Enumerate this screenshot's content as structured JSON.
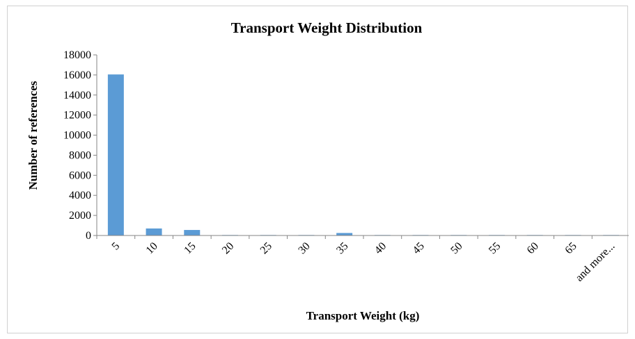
{
  "chart_data": {
    "type": "bar",
    "title": "Transport Weight Distribution",
    "xlabel": "Transport  Weight (kg)",
    "ylabel": "Number of references",
    "categories": [
      "5",
      "10",
      "15",
      "20",
      "25",
      "30",
      "35",
      "40",
      "45",
      "50",
      "55",
      "60",
      "65",
      "and more..."
    ],
    "values": [
      16050,
      700,
      550,
      50,
      50,
      50,
      250,
      50,
      50,
      50,
      50,
      50,
      50,
      50
    ],
    "ylim": [
      0,
      18000
    ],
    "yticks": [
      0,
      2000,
      4000,
      6000,
      8000,
      10000,
      12000,
      14000,
      16000,
      18000
    ],
    "grid": false,
    "legend": "none",
    "colors": {
      "bar": "#5b9bd5",
      "axis": "#868686"
    }
  }
}
